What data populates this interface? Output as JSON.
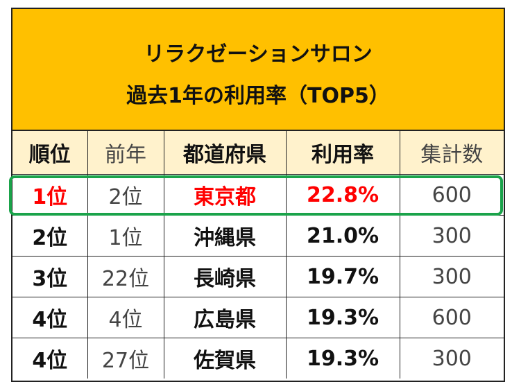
{
  "title": {
    "line1": "リラクゼーションサロン",
    "line2": "過去1年の利用率（TOP5）"
  },
  "columns": [
    "順位",
    "前年",
    "都道府県",
    "利用率",
    "集計数"
  ],
  "rows": [
    {
      "rank": "1位",
      "prev": "2位",
      "pref": "東京都",
      "rate": "22.8%",
      "count": "600"
    },
    {
      "rank": "2位",
      "prev": "1位",
      "pref": "沖縄県",
      "rate": "21.0%",
      "count": "300"
    },
    {
      "rank": "3位",
      "prev": "22位",
      "pref": "長崎県",
      "rate": "19.7%",
      "count": "300"
    },
    {
      "rank": "4位",
      "prev": "4位",
      "pref": "広島県",
      "rate": "19.3%",
      "count": "600"
    },
    {
      "rank": "4位",
      "prev": "27位",
      "pref": "佐賀県",
      "rate": "19.3%",
      "count": "300"
    }
  ],
  "colors": {
    "header_bg": "#ffc000",
    "column_header_bg": "#fff2cc",
    "top_row_text": "#ff0000",
    "highlight_border": "#1aa34a"
  }
}
